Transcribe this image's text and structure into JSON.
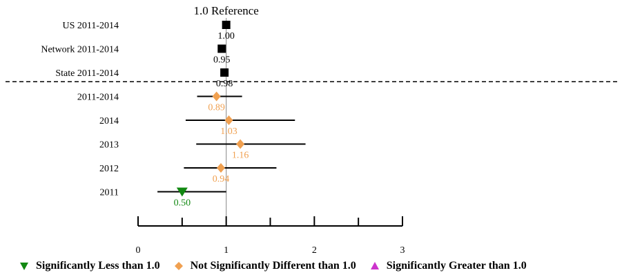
{
  "chart_data": {
    "type": "forest",
    "reference_value": 1.0,
    "reference_label": "1.0 Reference",
    "xlim": [
      0,
      3
    ],
    "x_ticks": [
      0,
      1,
      2,
      3
    ],
    "x_tick_labels": [
      "0",
      "1",
      "2",
      "3"
    ],
    "rows": [
      {
        "label": "US 2011-2014",
        "value": 1.0,
        "value_label": "1.00",
        "ci": null,
        "category": "reference",
        "color": "#000000"
      },
      {
        "label": "Network 2011-2014",
        "value": 0.95,
        "value_label": "0.95",
        "ci": null,
        "category": "reference",
        "color": "#000000"
      },
      {
        "label": "State 2011-2014",
        "value": 0.98,
        "value_label": "0.98",
        "ci": null,
        "category": "reference",
        "color": "#000000"
      },
      {
        "label": "2011-2014",
        "value": 0.89,
        "value_label": "0.89",
        "ci": [
          0.67,
          1.18
        ],
        "category": "not-significant",
        "color": "#f0a050"
      },
      {
        "label": "2014",
        "value": 1.03,
        "value_label": "1.03",
        "ci": [
          0.54,
          1.78
        ],
        "category": "not-significant",
        "color": "#f0a050"
      },
      {
        "label": "2013",
        "value": 1.16,
        "value_label": "1.16",
        "ci": [
          0.66,
          1.9
        ],
        "category": "not-significant",
        "color": "#f0a050"
      },
      {
        "label": "2012",
        "value": 0.94,
        "value_label": "0.94",
        "ci": [
          0.52,
          1.57
        ],
        "category": "not-significant",
        "color": "#f0a050"
      },
      {
        "label": "2011",
        "value": 0.5,
        "value_label": "0.50",
        "ci": [
          0.22,
          1.0
        ],
        "category": "less",
        "color": "#118811"
      }
    ],
    "separator_after_row": 3,
    "legend": [
      {
        "label": "Significantly Less than 1.0",
        "marker": "triangle-down",
        "color": "#118811"
      },
      {
        "label": "Not Significantly Different than 1.0",
        "marker": "diamond",
        "color": "#f0a050"
      },
      {
        "label": "Significantly Greater than 1.0",
        "marker": "triangle-up",
        "color": "#cc33cc"
      }
    ]
  }
}
